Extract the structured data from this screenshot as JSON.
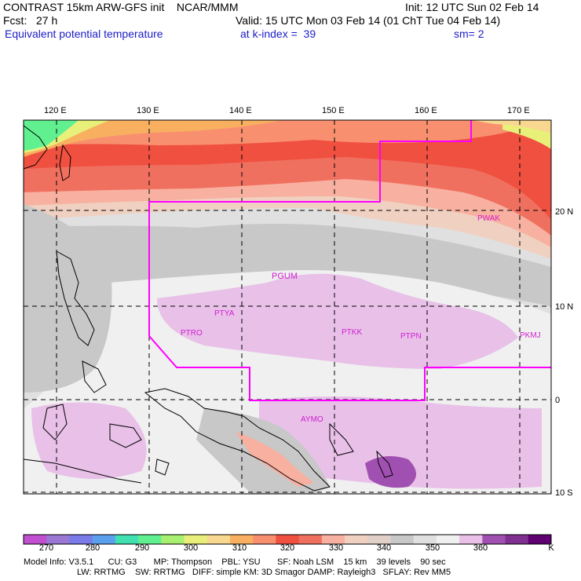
{
  "header": {
    "line1_left": "CONTRAST 15km ARW-GFS init    NCAR/MMM",
    "line1_right": "Init: 12 UTC Sun 02 Feb 14",
    "line2_left": "Fcst:   27 h",
    "line2_right": "Valid: 15 UTC Mon 03 Feb 14 (01 ChT Tue 04 Feb 14)",
    "line3_left": "Equivalent potential temperature",
    "line3_mid": "at k-index =  39",
    "line3_right": "sm= 2"
  },
  "axes": {
    "lon_labels": [
      "120 E",
      "130 E",
      "140 E",
      "150 E",
      "160 E",
      "170 E"
    ],
    "lat_labels": [
      "20 N",
      "10 N",
      "0",
      "10 S"
    ]
  },
  "stations": [
    {
      "id": "PGUM"
    },
    {
      "id": "PTYA"
    },
    {
      "id": "PTRO"
    },
    {
      "id": "PTKK"
    },
    {
      "id": "PTPN"
    },
    {
      "id": "PKMJ"
    },
    {
      "id": "PWAK"
    },
    {
      "id": "AYMO"
    }
  ],
  "colorbar": {
    "unit": "K",
    "labels": [
      "270",
      "280",
      "290",
      "300",
      "310",
      "320",
      "330",
      "340",
      "350",
      "360"
    ],
    "colors": [
      "#c050d0",
      "#9a78d4",
      "#7a7ae8",
      "#5aa0ec",
      "#40e0b0",
      "#60f090",
      "#a8f070",
      "#e8f07a",
      "#f8d890",
      "#f8b060",
      "#f89070",
      "#f05040",
      "#f07060",
      "#f8b0a0",
      "#f0d0c0",
      "#e0d0c8",
      "#c8c8c8",
      "#e0e0e0",
      "#f0f0f0",
      "#e8c0e8",
      "#a050b0",
      "#803090",
      "#600070"
    ]
  },
  "footer": {
    "line1": "Model Info: V3.5.1      CU: G3       MP: Thompson    PBL: YSU       SF: Noah LSM    15 km    39 levels    90 sec",
    "line2": "LW: RRTMG    SW: RRTMG   DIFF: simple KM: 3D Smagor DAMP: Rayleigh3   SFLAY: Rev MM5"
  },
  "colors": {
    "title_blue": "#1c1cc8",
    "boundary": "#ff00ff"
  }
}
